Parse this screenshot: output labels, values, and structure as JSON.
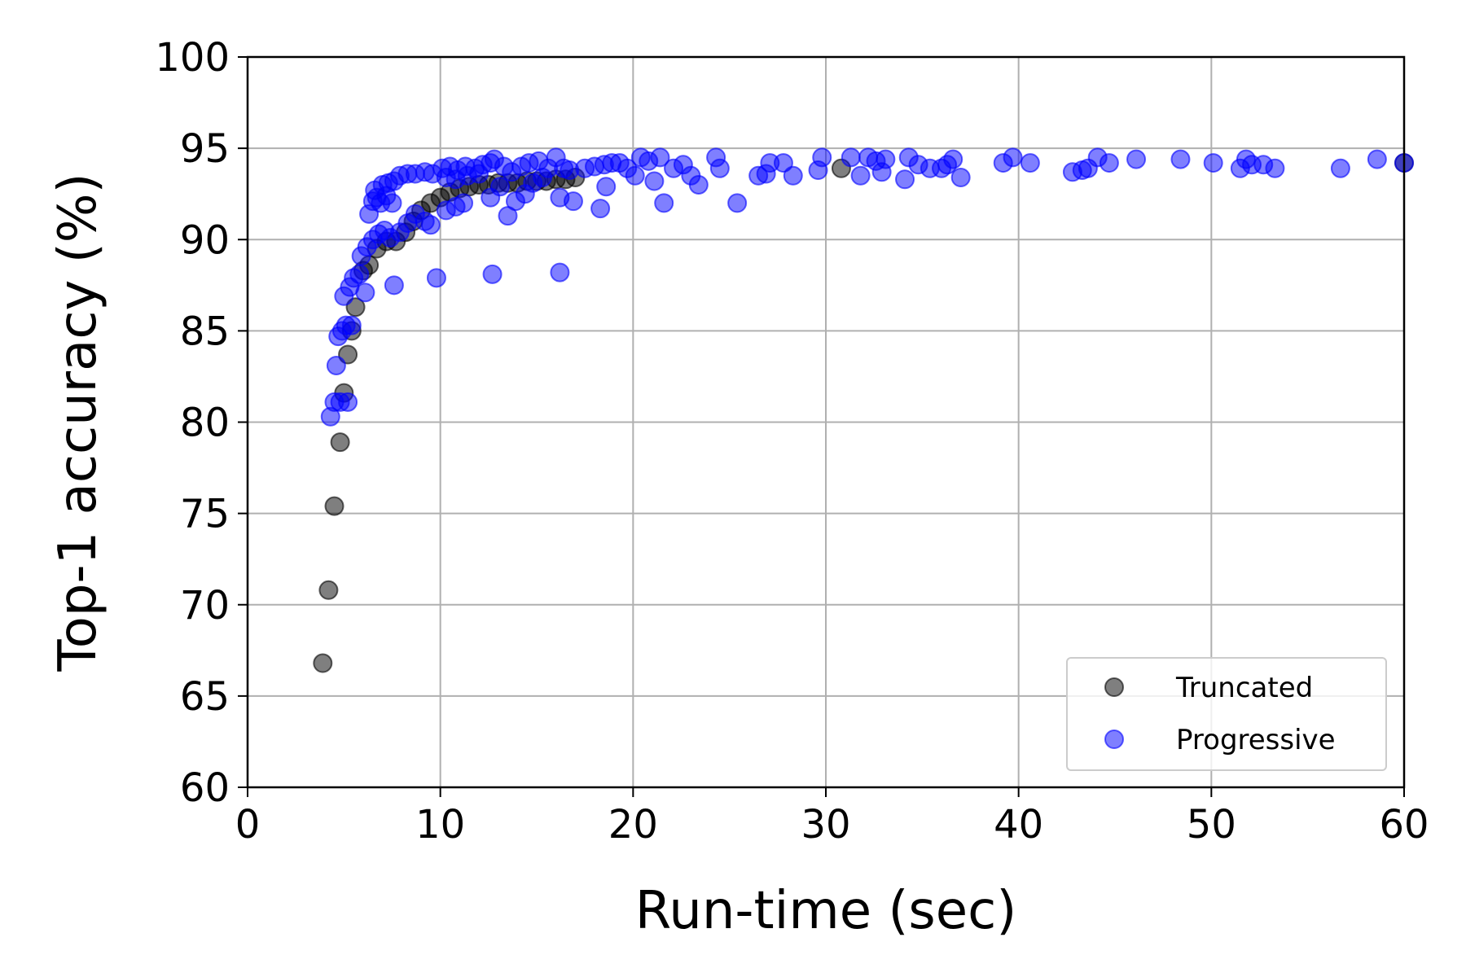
{
  "chart_data": {
    "type": "scatter",
    "title": "",
    "xlabel": "Run-time (sec)",
    "ylabel": "Top-1 accuracy (%)",
    "xlim": [
      0,
      60
    ],
    "ylim": [
      60,
      100
    ],
    "xticks": [
      0,
      10,
      20,
      30,
      40,
      50,
      60
    ],
    "yticks": [
      60,
      65,
      70,
      75,
      80,
      85,
      90,
      95,
      100
    ],
    "grid": true,
    "legend_position": "bottom-right",
    "series": [
      {
        "name": "Truncated",
        "color": "#000000",
        "opacity": 0.5,
        "points": [
          [
            3.9,
            66.8
          ],
          [
            4.2,
            70.8
          ],
          [
            4.5,
            75.4
          ],
          [
            4.8,
            78.9
          ],
          [
            5.0,
            81.6
          ],
          [
            5.2,
            83.7
          ],
          [
            5.4,
            85.0
          ],
          [
            5.6,
            86.3
          ],
          [
            6.0,
            88.3
          ],
          [
            6.3,
            88.6
          ],
          [
            6.7,
            89.5
          ],
          [
            7.2,
            89.9
          ],
          [
            7.7,
            89.9
          ],
          [
            8.2,
            90.4
          ],
          [
            8.6,
            91.0
          ],
          [
            9.0,
            91.6
          ],
          [
            9.5,
            92.0
          ],
          [
            10.0,
            92.3
          ],
          [
            10.5,
            92.6
          ],
          [
            11.0,
            92.8
          ],
          [
            11.5,
            92.9
          ],
          [
            12.0,
            93.0
          ],
          [
            12.5,
            93.0
          ],
          [
            13.0,
            93.1
          ],
          [
            13.5,
            93.1
          ],
          [
            14.0,
            93.1
          ],
          [
            14.5,
            93.2
          ],
          [
            15.0,
            93.2
          ],
          [
            15.5,
            93.2
          ],
          [
            16.0,
            93.3
          ],
          [
            16.5,
            93.3
          ],
          [
            17.0,
            93.4
          ],
          [
            30.8,
            93.9
          ],
          [
            60.0,
            94.2
          ]
        ]
      },
      {
        "name": "Progressive",
        "color": "#0000ff",
        "opacity": 0.5,
        "points": [
          [
            4.3,
            80.3
          ],
          [
            4.5,
            81.1
          ],
          [
            4.8,
            81.1
          ],
          [
            5.2,
            81.1
          ],
          [
            4.6,
            83.1
          ],
          [
            4.7,
            84.7
          ],
          [
            4.9,
            85.0
          ],
          [
            5.1,
            85.3
          ],
          [
            5.4,
            85.3
          ],
          [
            5.0,
            86.9
          ],
          [
            5.3,
            87.4
          ],
          [
            5.5,
            87.9
          ],
          [
            5.8,
            88.1
          ],
          [
            6.1,
            87.1
          ],
          [
            5.9,
            89.1
          ],
          [
            6.2,
            89.6
          ],
          [
            6.5,
            90.0
          ],
          [
            6.8,
            90.3
          ],
          [
            7.1,
            90.5
          ],
          [
            7.4,
            90.1
          ],
          [
            7.6,
            87.5
          ],
          [
            7.9,
            90.4
          ],
          [
            8.3,
            90.9
          ],
          [
            8.7,
            91.4
          ],
          [
            9.2,
            91.0
          ],
          [
            9.5,
            90.8
          ],
          [
            9.8,
            87.9
          ],
          [
            10.3,
            91.6
          ],
          [
            10.8,
            91.8
          ],
          [
            11.2,
            92.0
          ],
          [
            6.3,
            91.4
          ],
          [
            6.5,
            92.1
          ],
          [
            6.7,
            92.3
          ],
          [
            6.9,
            92.0
          ],
          [
            7.2,
            92.4
          ],
          [
            7.5,
            92.0
          ],
          [
            6.6,
            92.7
          ],
          [
            7.0,
            93.0
          ],
          [
            7.3,
            93.1
          ],
          [
            7.6,
            93.2
          ],
          [
            7.9,
            93.5
          ],
          [
            8.3,
            93.6
          ],
          [
            8.7,
            93.6
          ],
          [
            9.2,
            93.7
          ],
          [
            9.6,
            93.6
          ],
          [
            10.1,
            93.9
          ],
          [
            10.5,
            94.0
          ],
          [
            10.9,
            93.8
          ],
          [
            11.3,
            94.0
          ],
          [
            11.8,
            93.9
          ],
          [
            12.2,
            94.1
          ],
          [
            12.6,
            94.2
          ],
          [
            12.8,
            94.4
          ],
          [
            13.3,
            94.0
          ],
          [
            13.7,
            93.7
          ],
          [
            14.2,
            94.0
          ],
          [
            14.6,
            94.2
          ],
          [
            15.1,
            94.3
          ],
          [
            15.6,
            93.9
          ],
          [
            16.0,
            94.5
          ],
          [
            16.4,
            93.9
          ],
          [
            16.7,
            93.8
          ],
          [
            10.3,
            93.4
          ],
          [
            10.8,
            93.3
          ],
          [
            11.4,
            93.5
          ],
          [
            12.0,
            93.6
          ],
          [
            12.6,
            92.3
          ],
          [
            13.1,
            92.9
          ],
          [
            13.5,
            91.3
          ],
          [
            13.9,
            92.1
          ],
          [
            14.4,
            92.5
          ],
          [
            14.8,
            93.1
          ],
          [
            15.3,
            93.4
          ],
          [
            16.2,
            92.3
          ],
          [
            16.9,
            92.1
          ],
          [
            12.7,
            88.1
          ],
          [
            16.2,
            88.2
          ],
          [
            17.5,
            93.9
          ],
          [
            18.0,
            94.0
          ],
          [
            18.3,
            91.7
          ],
          [
            18.6,
            92.9
          ],
          [
            18.5,
            94.1
          ],
          [
            18.9,
            94.2
          ],
          [
            19.3,
            94.2
          ],
          [
            19.7,
            93.9
          ],
          [
            20.1,
            93.5
          ],
          [
            20.4,
            94.5
          ],
          [
            20.8,
            94.3
          ],
          [
            21.1,
            93.2
          ],
          [
            21.4,
            94.5
          ],
          [
            21.6,
            92.0
          ],
          [
            22.1,
            93.9
          ],
          [
            22.6,
            94.1
          ],
          [
            23.0,
            93.5
          ],
          [
            23.4,
            93.0
          ],
          [
            24.3,
            94.5
          ],
          [
            24.5,
            93.9
          ],
          [
            25.4,
            92.0
          ],
          [
            26.5,
            93.5
          ],
          [
            26.9,
            93.6
          ],
          [
            27.1,
            94.2
          ],
          [
            27.8,
            94.2
          ],
          [
            28.3,
            93.5
          ],
          [
            29.6,
            93.8
          ],
          [
            29.8,
            94.5
          ],
          [
            31.3,
            94.5
          ],
          [
            31.8,
            93.5
          ],
          [
            32.2,
            94.5
          ],
          [
            32.6,
            94.3
          ],
          [
            32.9,
            93.7
          ],
          [
            33.1,
            94.4
          ],
          [
            34.1,
            93.3
          ],
          [
            34.3,
            94.5
          ],
          [
            34.8,
            94.1
          ],
          [
            35.4,
            93.9
          ],
          [
            36.0,
            93.9
          ],
          [
            36.3,
            94.1
          ],
          [
            36.6,
            94.4
          ],
          [
            37.0,
            93.4
          ],
          [
            39.2,
            94.2
          ],
          [
            39.7,
            94.5
          ],
          [
            40.6,
            94.2
          ],
          [
            42.8,
            93.7
          ],
          [
            43.3,
            93.8
          ],
          [
            43.6,
            93.9
          ],
          [
            44.1,
            94.5
          ],
          [
            44.7,
            94.2
          ],
          [
            46.1,
            94.4
          ],
          [
            48.4,
            94.4
          ],
          [
            50.1,
            94.2
          ],
          [
            51.5,
            93.9
          ],
          [
            51.8,
            94.4
          ],
          [
            52.1,
            94.1
          ],
          [
            52.7,
            94.1
          ],
          [
            53.3,
            93.9
          ],
          [
            56.7,
            93.9
          ],
          [
            58.6,
            94.4
          ],
          [
            60.0,
            94.2
          ]
        ]
      }
    ]
  }
}
